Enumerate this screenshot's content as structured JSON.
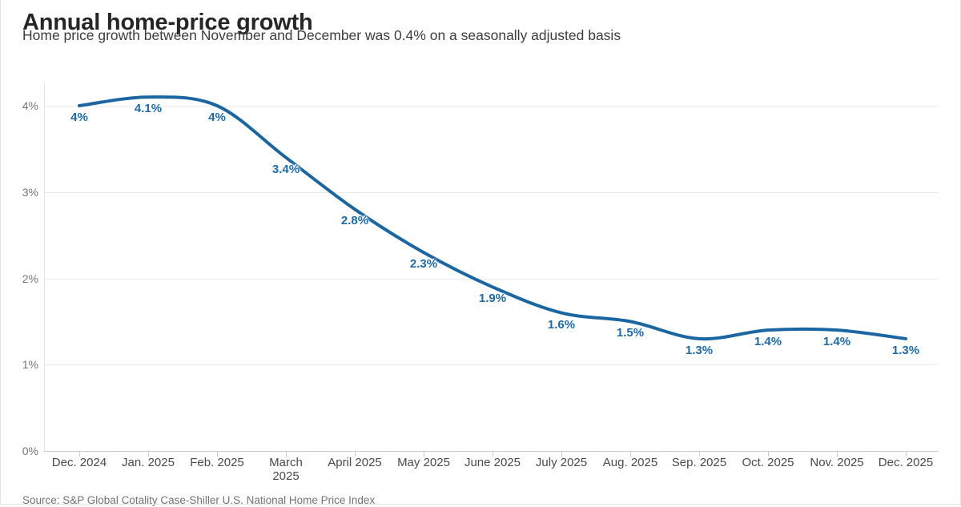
{
  "header": {
    "title": "Annual home-price growth",
    "subtitle": "Home price growth between November and December was 0.4% on a seasonally adjusted basis"
  },
  "footer": {
    "source": "Source: S&P Global Cotality Case-Shiller U.S. National Home Price Index"
  },
  "chart_data": {
    "type": "line",
    "title": "Annual home-price growth",
    "xlabel": "",
    "ylabel": "",
    "x": [
      "Dec. 2024",
      "Jan. 2025",
      "Feb. 2025",
      "March 2025",
      "April 2025",
      "May 2025",
      "June 2025",
      "July 2025",
      "Aug. 2025",
      "Sep. 2025",
      "Oct. 2025",
      "Nov. 2025",
      "Dec. 2025"
    ],
    "x_tick_labels": [
      "Dec. 2024",
      "Jan. 2025",
      "Feb. 2025",
      "March\n2025",
      "April 2025",
      "May 2025",
      "June 2025",
      "July 2025",
      "Aug. 2025",
      "Sep. 2025",
      "Oct. 2025",
      "Nov. 2025",
      "Dec. 2025"
    ],
    "values": [
      4,
      4.1,
      4,
      3.4,
      2.8,
      2.3,
      1.9,
      1.6,
      1.5,
      1.3,
      1.4,
      1.4,
      1.3
    ],
    "point_labels": [
      "4%",
      "4.1%",
      "4%",
      "3.4%",
      "2.8%",
      "2.3%",
      "1.9%",
      "1.6%",
      "1.5%",
      "1.3%",
      "1.4%",
      "1.4%",
      "1.3%"
    ],
    "y_ticks": [
      "0%",
      "1%",
      "2%",
      "3%",
      "4%"
    ],
    "y_tick_values": [
      0,
      1,
      2,
      3,
      4
    ],
    "ylim": [
      0,
      4.3
    ],
    "grid": "horizontal",
    "legend": "none",
    "smoothing": true,
    "colors": {
      "line": "#1a66a3",
      "point_label": "#1b6bad",
      "grid": "#ebebeb",
      "baseline": "#c9c9c9",
      "axis_line": "#e2e2e2"
    }
  }
}
